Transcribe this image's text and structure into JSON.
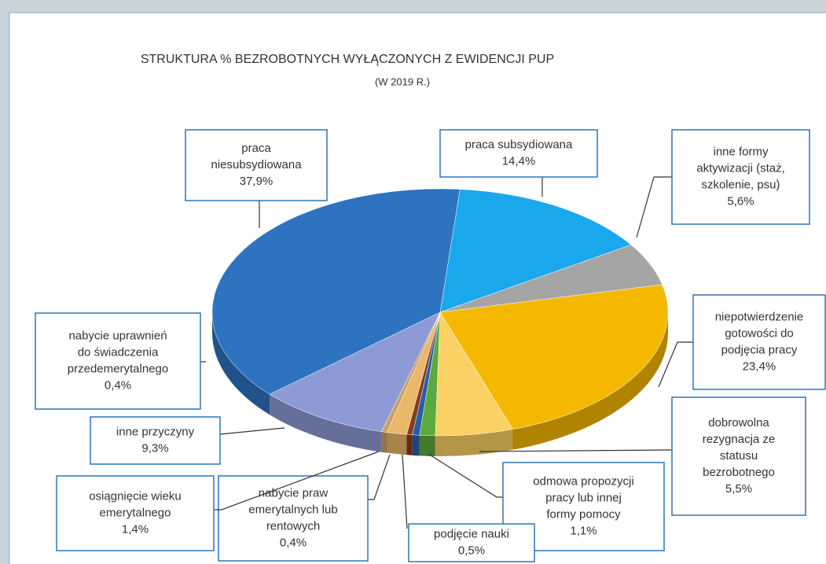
{
  "chart_data": {
    "type": "pie3d",
    "title": "STRUKTURA % BEZROBOTNYCH WYŁĄCZONYCH Z EWIDENCJI PUP",
    "subtitle": "(W  2019 R.)",
    "categories": [
      [
        "praca subsydiowana"
      ],
      [
        "inne formy",
        "aktywizacji (staż,",
        "szkolenie, psu)"
      ],
      [
        "niepotwierdzenie",
        "gotowości do",
        "podjęcia pracy"
      ],
      [
        "dobrowolna",
        "rezygnacja ze",
        "statusu",
        "bezrobotnego"
      ],
      [
        "odmowa propozycji",
        "pracy lub innej",
        "formy pomocy"
      ],
      [
        "podjęcie nauki"
      ],
      [
        "nabycie praw",
        "emerytalnych lub",
        "rentowych"
      ],
      [
        "osiągnięcie wieku",
        "emerytalnego"
      ],
      [
        "nabycie uprawnień",
        "do świadczenia",
        "przedemerytalnego"
      ],
      [
        "inne przyczyny"
      ],
      [
        "praca",
        "niesubsydiowana"
      ]
    ],
    "values": [
      14.4,
      5.6,
      23.4,
      5.5,
      1.1,
      0.5,
      0.4,
      1.4,
      0.4,
      9.3,
      37.9
    ],
    "value_labels": [
      "14,4%",
      "5,6%",
      "23,4%",
      "5,5%",
      "1,1%",
      "0,5%",
      "0,4%",
      "1,4%",
      "0,4%",
      "9,3%",
      "37,9%"
    ],
    "colors": [
      "#1aa7ec",
      "#a5a5a5",
      "#f5b800",
      "#fbd166",
      "#5aab3c",
      "#2a5ea8",
      "#8b3a1e",
      "#e9b86b",
      "#c9a06a",
      "#8d9ad6",
      "#2e73c0"
    ]
  }
}
